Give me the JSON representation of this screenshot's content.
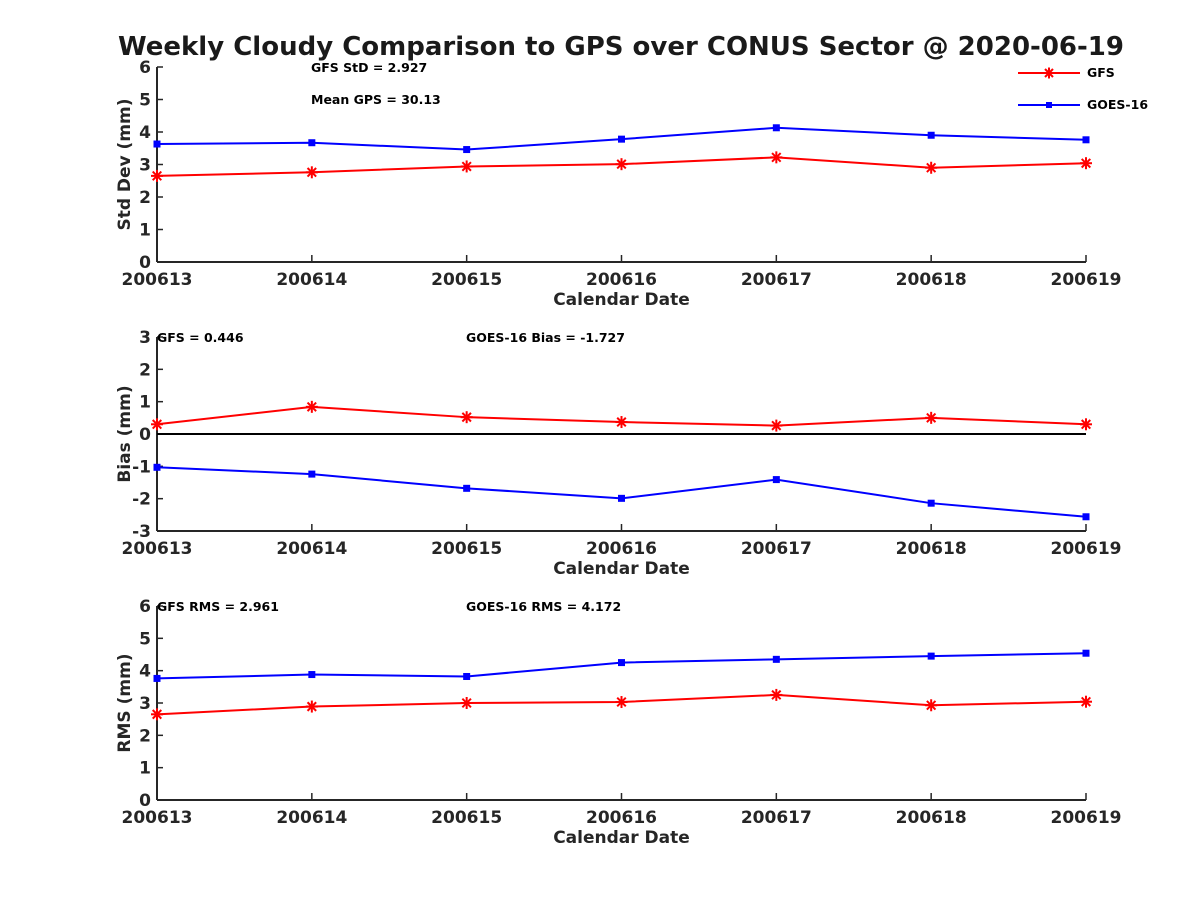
{
  "title": "Weekly Cloudy Comparison to GPS over CONUS Sector @ 2020-06-19",
  "legend": {
    "entries": [
      {
        "label": "GFS",
        "color": "#ff0000",
        "marker": "asterisk"
      },
      {
        "label": "GOES-16",
        "color": "#0000ff",
        "marker": "square"
      }
    ],
    "placement": "top-right"
  },
  "chart_data": [
    {
      "type": "line",
      "title": "",
      "xlabel": "Calendar Date",
      "ylabel": "Std Dev (mm)",
      "categories": [
        "200613",
        "200614",
        "200615",
        "200616",
        "200617",
        "200618",
        "200619"
      ],
      "ylim": [
        0,
        6
      ],
      "yticks": [
        "0",
        "1",
        "2",
        "3",
        "4",
        "5",
        "6"
      ],
      "grid": false,
      "series": [
        {
          "name": "GFS",
          "color": "#ff0000",
          "marker": "asterisk",
          "values": [
            2.65,
            2.76,
            2.94,
            3.01,
            3.22,
            2.9,
            3.04
          ]
        },
        {
          "name": "GOES-16",
          "color": "#0000ff",
          "marker": "square",
          "values": [
            3.63,
            3.67,
            3.46,
            3.78,
            4.13,
            3.9,
            3.76
          ]
        }
      ],
      "annotations": [
        "GFS StD = 2.927",
        "Mean GPS = 30.13"
      ]
    },
    {
      "type": "line",
      "title": "",
      "xlabel": "Calendar Date",
      "ylabel": "Bias (mm)",
      "categories": [
        "200613",
        "200614",
        "200615",
        "200616",
        "200617",
        "200618",
        "200619"
      ],
      "ylim": [
        -3,
        3
      ],
      "yticks": [
        "-3",
        "-2",
        "-1",
        "0",
        "1",
        "2",
        "3"
      ],
      "grid": false,
      "zero_line": true,
      "series": [
        {
          "name": "GFS",
          "color": "#ff0000",
          "marker": "asterisk",
          "values": [
            0.3,
            0.84,
            0.52,
            0.37,
            0.26,
            0.5,
            0.3
          ]
        },
        {
          "name": "GOES-16",
          "color": "#0000ff",
          "marker": "square",
          "values": [
            -1.03,
            -1.24,
            -1.68,
            -1.99,
            -1.41,
            -2.14,
            -2.56
          ]
        }
      ],
      "annotations": [
        "GFS = 0.446",
        "GOES-16 Bias  = -1.727"
      ]
    },
    {
      "type": "line",
      "title": "",
      "xlabel": "Calendar Date",
      "ylabel": "RMS (mm)",
      "categories": [
        "200613",
        "200614",
        "200615",
        "200616",
        "200617",
        "200618",
        "200619"
      ],
      "ylim": [
        0,
        6
      ],
      "yticks": [
        "0",
        "1",
        "2",
        "3",
        "4",
        "5",
        "6"
      ],
      "grid": false,
      "series": [
        {
          "name": "GFS",
          "color": "#ff0000",
          "marker": "asterisk",
          "values": [
            2.65,
            2.89,
            3.0,
            3.03,
            3.25,
            2.93,
            3.04
          ]
        },
        {
          "name": "GOES-16",
          "color": "#0000ff",
          "marker": "square",
          "values": [
            3.76,
            3.88,
            3.82,
            4.25,
            4.35,
            4.45,
            4.54
          ]
        }
      ],
      "annotations": [
        "GFS RMS = 2.961",
        "GOES-16 RMS = 4.172"
      ]
    }
  ]
}
